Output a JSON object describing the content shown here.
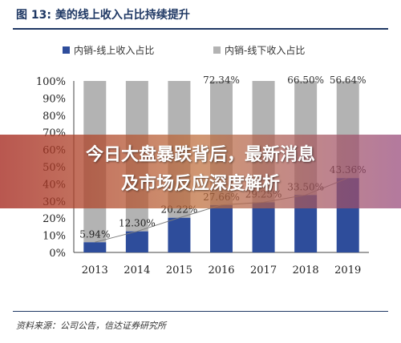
{
  "figure": {
    "title": "图 13:  美的线上收入占比持续提升",
    "source": "资料来源：公司公告，信达证券研究所"
  },
  "overlay": {
    "line1": "今日大盘暴跌背后，最新消息",
    "line2": "及市场反应深度解析"
  },
  "colors": {
    "online": "#2e4d9b",
    "offline": "#b3b3b3",
    "trend_line": "#7f7f7f"
  },
  "chart_data": {
    "type": "bar",
    "stacked": "percent",
    "categories": [
      "2013",
      "2014",
      "2015",
      "2016",
      "2017",
      "2018",
      "2019"
    ],
    "series": [
      {
        "name": "内销-线上收入占比",
        "values": [
          5.94,
          12.3,
          20.22,
          27.66,
          29.25,
          33.5,
          43.36
        ],
        "labels": [
          "5.94%",
          "12.30%",
          "20.22%",
          "27.66%",
          "29.25%",
          "33.50%",
          "43.36%"
        ]
      },
      {
        "name": "内销-线下收入占比",
        "values": [
          94.06,
          87.7,
          79.78,
          72.34,
          70.75,
          66.5,
          56.64
        ],
        "labels": [
          "",
          "",
          "",
          "72.34%",
          "",
          "66.50%",
          "56.64%"
        ]
      }
    ],
    "yticks": [
      "0%",
      "10%",
      "20%",
      "30%",
      "40%",
      "50%",
      "60%",
      "70%",
      "80%",
      "90%",
      "100%"
    ],
    "ylim": [
      0,
      100
    ],
    "legend": "top"
  }
}
